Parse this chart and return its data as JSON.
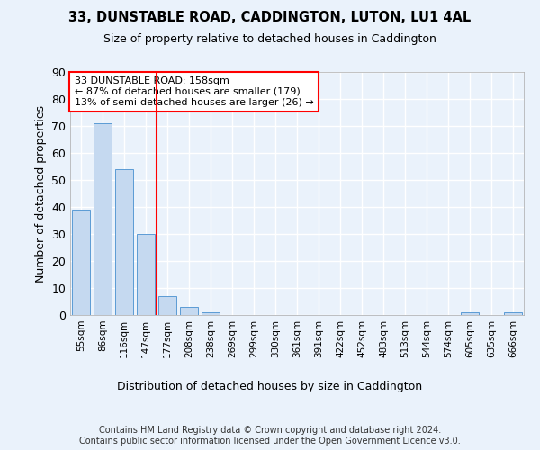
{
  "title1": "33, DUNSTABLE ROAD, CADDINGTON, LUTON, LU1 4AL",
  "title2": "Size of property relative to detached houses in Caddington",
  "xlabel": "Distribution of detached houses by size in Caddington",
  "ylabel": "Number of detached properties",
  "bar_color": "#c5d9f0",
  "bar_edge_color": "#5b9bd5",
  "categories": [
    "55sqm",
    "86sqm",
    "116sqm",
    "147sqm",
    "177sqm",
    "208sqm",
    "238sqm",
    "269sqm",
    "299sqm",
    "330sqm",
    "361sqm",
    "391sqm",
    "422sqm",
    "452sqm",
    "483sqm",
    "513sqm",
    "544sqm",
    "574sqm",
    "605sqm",
    "635sqm",
    "666sqm"
  ],
  "values": [
    39,
    71,
    54,
    30,
    7,
    3,
    1,
    0,
    0,
    0,
    0,
    0,
    0,
    0,
    0,
    0,
    0,
    0,
    1,
    0,
    1
  ],
  "property_line_x": 3.5,
  "annotation_text": "33 DUNSTABLE ROAD: 158sqm\n← 87% of detached houses are smaller (179)\n13% of semi-detached houses are larger (26) →",
  "annotation_box_color": "white",
  "annotation_box_edge": "red",
  "vline_color": "red",
  "ylim": [
    0,
    90
  ],
  "yticks": [
    0,
    10,
    20,
    30,
    40,
    50,
    60,
    70,
    80,
    90
  ],
  "footnote": "Contains HM Land Registry data © Crown copyright and database right 2024.\nContains public sector information licensed under the Open Government Licence v3.0.",
  "background_color": "#eaf2fb",
  "plot_bg_color": "#eaf2fb",
  "grid_color": "white"
}
